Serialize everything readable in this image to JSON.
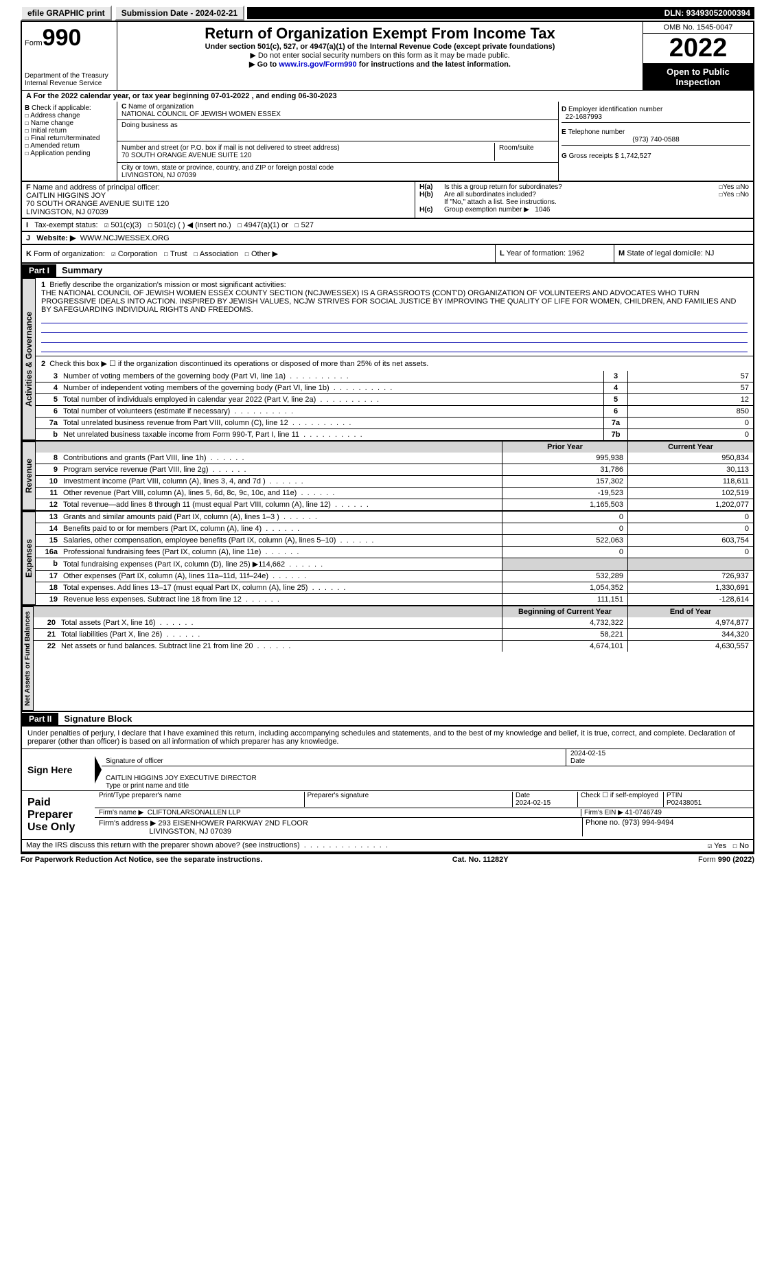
{
  "topbar": {
    "efile": "efile GRAPHIC print",
    "submit_btn": "Submission Date - 2024-02-21",
    "dln": "DLN: 93493052000394"
  },
  "header": {
    "form_label": "Form",
    "form_no": "990",
    "dept": "Department of the Treasury",
    "irs": "Internal Revenue Service",
    "title": "Return of Organization Exempt From Income Tax",
    "subtitle": "Under section 501(c), 527, or 4947(a)(1) of the Internal Revenue Code (except private foundations)",
    "warn1": "▶ Do not enter social security numbers on this form as it may be made public.",
    "warn2_pre": "▶ Go to ",
    "warn2_link": "www.irs.gov/Form990",
    "warn2_post": " for instructions and the latest information.",
    "omb": "OMB No. 1545-0047",
    "year": "2022",
    "public": "Open to Public Inspection"
  },
  "A": {
    "text": "For the 2022 calendar year, or tax year beginning 07-01-2022     , and ending 06-30-2023"
  },
  "B": {
    "label": "Check if applicable:",
    "items": [
      "Address change",
      "Name change",
      "Initial return",
      "Final return/terminated",
      "Amended return",
      "Application pending"
    ]
  },
  "C": {
    "name_lbl": "Name of organization",
    "name": "NATIONAL COUNCIL OF JEWISH WOMEN ESSEX",
    "dba_lbl": "Doing business as",
    "dba": "",
    "addr_lbl": "Number and street (or P.O. box if mail is not delivered to street address)",
    "room_lbl": "Room/suite",
    "addr": "70 SOUTH ORANGE AVENUE SUITE 120",
    "city_lbl": "City or town, state or province, country, and ZIP or foreign postal code",
    "city": "LIVINGSTON, NJ  07039"
  },
  "D": {
    "lbl": "Employer identification number",
    "val": "22-1687993"
  },
  "E": {
    "lbl": "Telephone number",
    "val": "(973) 740-0588"
  },
  "G": {
    "lbl": "Gross receipts $",
    "val": "1,742,527"
  },
  "F": {
    "lbl": "Name and address of principal officer:",
    "name": "CAITLIN HIGGINS JOY",
    "addr1": "70 SOUTH ORANGE AVENUE SUITE 120",
    "addr2": "LIVINGSTON, NJ  07039"
  },
  "H": {
    "a": "Is this a group return for subordinates?",
    "b": "Are all subordinates included?",
    "note": "If \"No,\" attach a list. See instructions.",
    "c": "Group exemption number ▶",
    "c_val": "1046"
  },
  "I": {
    "lbl": "Tax-exempt status:",
    "opts": [
      "501(c)(3)",
      "501(c) (   ) ◀ (insert no.)",
      "4947(a)(1) or",
      "527"
    ]
  },
  "J": {
    "lbl": "Website: ▶",
    "val": "WWW.NCJWESSEX.ORG"
  },
  "K": {
    "lbl": "Form of organization:",
    "opts": [
      "Corporation",
      "Trust",
      "Association",
      "Other ▶"
    ]
  },
  "L": {
    "lbl": "Year of formation:",
    "val": "1962"
  },
  "M": {
    "lbl": "State of legal domicile:",
    "val": "NJ"
  },
  "part1": {
    "title": "Part I",
    "name": "Summary",
    "line1_lbl": "Briefly describe the organization's mission or most significant activities:",
    "line1_text": "THE NATIONAL COUNCIL OF JEWISH WOMEN ESSEX COUNTY SECTION (NCJW/ESSEX) IS A GRASSROOTS (CONT'D) ORGANIZATION OF VOLUNTEERS AND ADVOCATES WHO TURN PROGRESSIVE IDEALS INTO ACTION. INSPIRED BY JEWISH VALUES, NCJW STRIVES FOR SOCIAL JUSTICE BY IMPROVING THE QUALITY OF LIFE FOR WOMEN, CHILDREN, AND FAMILIES AND BY SAFEGUARDING INDIVIDUAL RIGHTS AND FREEDOMS.",
    "line2": "Check this box ▶ ☐  if the organization discontinued its operations or disposed of more than 25% of its net assets.",
    "gov": [
      {
        "n": "3",
        "t": "Number of voting members of the governing body (Part VI, line 1a)",
        "b": "3",
        "v": "57"
      },
      {
        "n": "4",
        "t": "Number of independent voting members of the governing body (Part VI, line 1b)",
        "b": "4",
        "v": "57"
      },
      {
        "n": "5",
        "t": "Total number of individuals employed in calendar year 2022 (Part V, line 2a)",
        "b": "5",
        "v": "12"
      },
      {
        "n": "6",
        "t": "Total number of volunteers (estimate if necessary)",
        "b": "6",
        "v": "850"
      },
      {
        "n": "7a",
        "t": "Total unrelated business revenue from Part VIII, column (C), line 12",
        "b": "7a",
        "v": "0"
      },
      {
        "n": "b",
        "t": "Net unrelated business taxable income from Form 990-T, Part I, line 11",
        "b": "7b",
        "v": "0"
      }
    ],
    "col_prior": "Prior Year",
    "col_curr": "Current Year",
    "rev": [
      {
        "n": "8",
        "t": "Contributions and grants (Part VIII, line 1h)",
        "p": "995,938",
        "c": "950,834"
      },
      {
        "n": "9",
        "t": "Program service revenue (Part VIII, line 2g)",
        "p": "31,786",
        "c": "30,113"
      },
      {
        "n": "10",
        "t": "Investment income (Part VIII, column (A), lines 3, 4, and 7d )",
        "p": "157,302",
        "c": "118,611"
      },
      {
        "n": "11",
        "t": "Other revenue (Part VIII, column (A), lines 5, 6d, 8c, 9c, 10c, and 11e)",
        "p": "-19,523",
        "c": "102,519"
      },
      {
        "n": "12",
        "t": "Total revenue—add lines 8 through 11 (must equal Part VIII, column (A), line 12)",
        "p": "1,165,503",
        "c": "1,202,077"
      }
    ],
    "exp": [
      {
        "n": "13",
        "t": "Grants and similar amounts paid (Part IX, column (A), lines 1–3 )",
        "p": "0",
        "c": "0"
      },
      {
        "n": "14",
        "t": "Benefits paid to or for members (Part IX, column (A), line 4)",
        "p": "0",
        "c": "0"
      },
      {
        "n": "15",
        "t": "Salaries, other compensation, employee benefits (Part IX, column (A), lines 5–10)",
        "p": "522,063",
        "c": "603,754"
      },
      {
        "n": "16a",
        "t": "Professional fundraising fees (Part IX, column (A), line 11e)",
        "p": "0",
        "c": "0"
      },
      {
        "n": "b",
        "t": "Total fundraising expenses (Part IX, column (D), line 25) ▶114,662",
        "p": "",
        "c": "",
        "shade": true
      },
      {
        "n": "17",
        "t": "Other expenses (Part IX, column (A), lines 11a–11d, 11f–24e)",
        "p": "532,289",
        "c": "726,937"
      },
      {
        "n": "18",
        "t": "Total expenses. Add lines 13–17 (must equal Part IX, column (A), line 25)",
        "p": "1,054,352",
        "c": "1,330,691"
      },
      {
        "n": "19",
        "t": "Revenue less expenses. Subtract line 18 from line 12",
        "p": "111,151",
        "c": "-128,614"
      }
    ],
    "col_begin": "Beginning of Current Year",
    "col_end": "End of Year",
    "net": [
      {
        "n": "20",
        "t": "Total assets (Part X, line 16)",
        "p": "4,732,322",
        "c": "4,974,877"
      },
      {
        "n": "21",
        "t": "Total liabilities (Part X, line 26)",
        "p": "58,221",
        "c": "344,320"
      },
      {
        "n": "22",
        "t": "Net assets or fund balances. Subtract line 21 from line 20",
        "p": "4,674,101",
        "c": "4,630,557"
      }
    ],
    "tabs": [
      "Activities & Governance",
      "Revenue",
      "Expenses",
      "Net Assets or Fund Balances"
    ]
  },
  "part2": {
    "title": "Part II",
    "name": "Signature Block",
    "decl": "Under penalties of perjury, I declare that I have examined this return, including accompanying schedules and statements, and to the best of my knowledge and belief, it is true, correct, and complete. Declaration of preparer (other than officer) is based on all information of which preparer has any knowledge.",
    "sign_here": "Sign Here",
    "sig_officer": "Signature of officer",
    "sig_date": "2024-02-15",
    "date_lbl": "Date",
    "sig_name": "CAITLIN HIGGINS JOY  EXECUTIVE DIRECTOR",
    "sig_name_lbl": "Type or print name and title",
    "paid": "Paid Preparer Use Only",
    "p_name_lbl": "Print/Type preparer's name",
    "p_sig_lbl": "Preparer's signature",
    "p_date_lbl": "Date",
    "p_date": "2024-02-15",
    "p_check": "Check ☐ if self-employed",
    "ptin_lbl": "PTIN",
    "ptin": "P02438051",
    "firm_lbl": "Firm's name    ▶",
    "firm": "CLIFTONLARSONALLEN LLP",
    "ein_lbl": "Firm's EIN ▶",
    "ein": "41-0746749",
    "faddr_lbl": "Firm's address ▶",
    "faddr1": "293 EISENHOWER PARKWAY 2ND FLOOR",
    "faddr2": "LIVINGSTON, NJ  07039",
    "phone_lbl": "Phone no.",
    "phone": "(973) 994-9494",
    "may": "May the IRS discuss this return with the preparer shown above? (see instructions)"
  },
  "footer": {
    "l": "For Paperwork Reduction Act Notice, see the separate instructions.",
    "m": "Cat. No. 11282Y",
    "r": "Form 990 (2022)"
  },
  "yesno": {
    "yes": "Yes",
    "no": "No"
  }
}
